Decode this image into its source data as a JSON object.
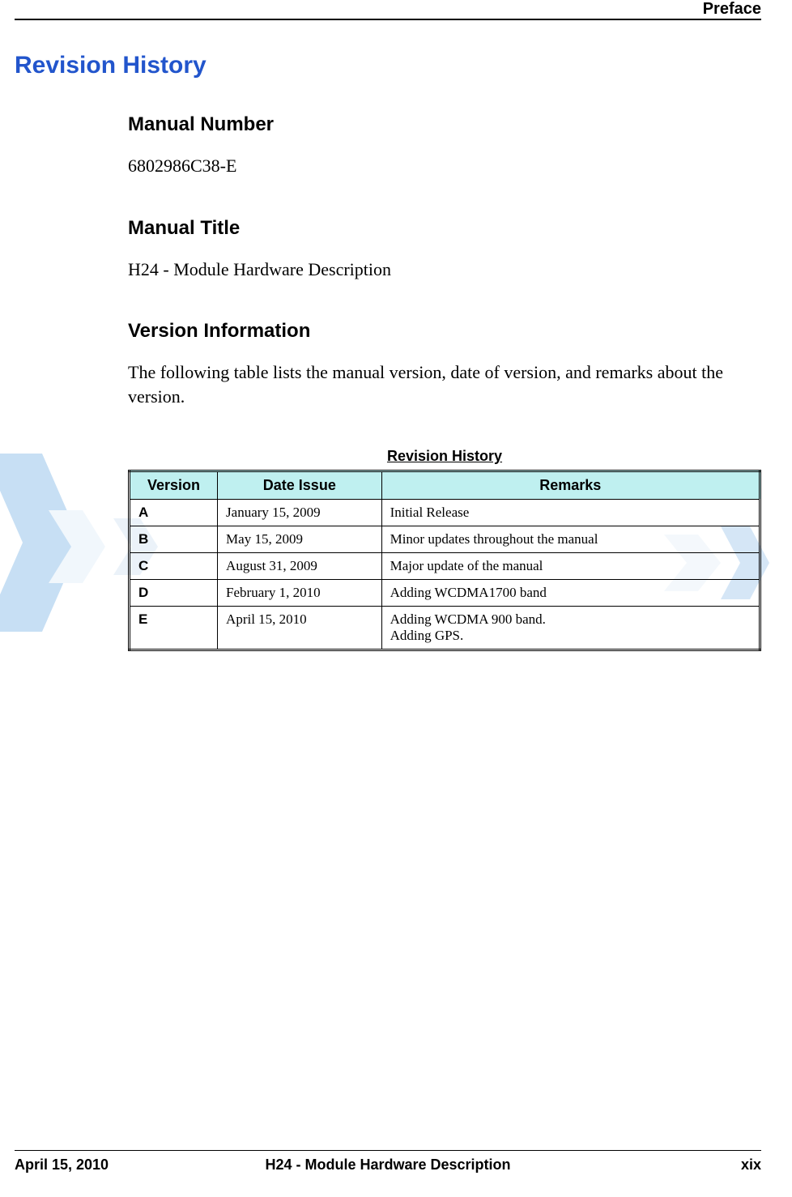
{
  "header": {
    "section": "Preface"
  },
  "title_h1": "Revision History",
  "sections": {
    "manual_number": {
      "heading": "Manual Number",
      "value": "6802986C38-E"
    },
    "manual_title": {
      "heading": "Manual Title",
      "value": "H24 - Module Hardware Description"
    },
    "version_info": {
      "heading": "Version Information",
      "intro": "The following table lists the manual version, date of version, and remarks about the version."
    }
  },
  "table": {
    "caption": "Revision History",
    "header_bg": "#bff0f0",
    "columns": [
      {
        "label": "Version",
        "width_pct": 14
      },
      {
        "label": "Date Issue",
        "width_pct": 26
      },
      {
        "label": "Remarks",
        "width_pct": 60
      }
    ],
    "rows": [
      {
        "version": "A",
        "date": "January 15, 2009",
        "remarks": "Initial Release"
      },
      {
        "version": "B",
        "date": "May 15, 2009",
        "remarks": "Minor updates throughout the manual"
      },
      {
        "version": "C",
        "date": "August 31, 2009",
        "remarks": "Major update of the manual"
      },
      {
        "version": "D",
        "date": "February 1, 2010",
        "remarks": "Adding WCDMA1700 band"
      },
      {
        "version": "E",
        "date": "April 15, 2010",
        "remarks": "Adding WCDMA 900 band.\nAdding GPS."
      }
    ]
  },
  "footer": {
    "date": "April 15, 2010",
    "title": "H24 - Module Hardware Description",
    "page": "xix"
  },
  "watermark": {
    "left_color": "#3a8fd8",
    "right_color": "#6aa8e0",
    "arrow_fill_left": "#cfe6f7",
    "arrow_fill_right": "#d8e8f5"
  }
}
